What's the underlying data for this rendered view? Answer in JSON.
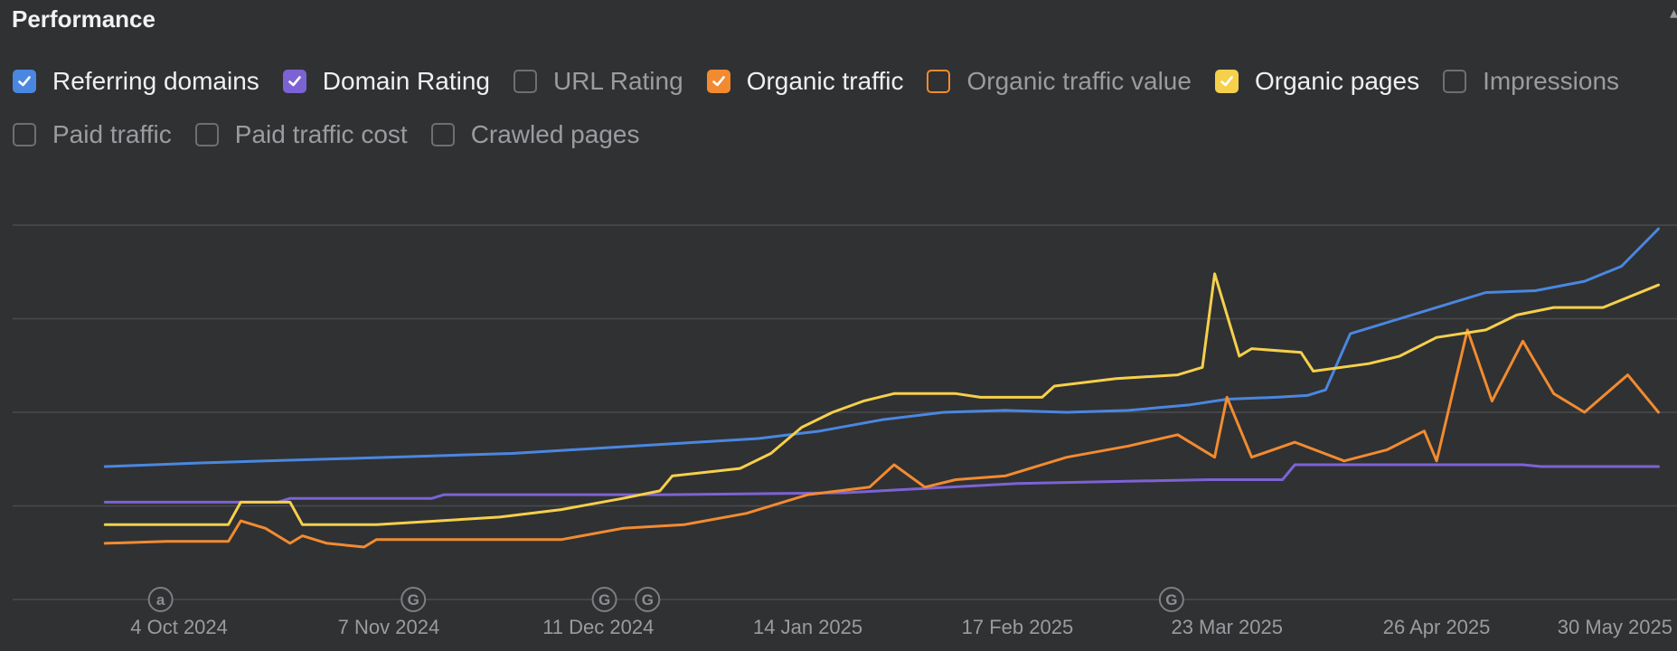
{
  "panel": {
    "title": "Performance"
  },
  "legend": [
    {
      "label": "Referring domains",
      "checked": true,
      "color": "#4a87e0"
    },
    {
      "label": "Domain Rating",
      "checked": true,
      "color": "#7c63d4"
    },
    {
      "label": "URL Rating",
      "checked": false,
      "color": "#6e6f73"
    },
    {
      "label": "Organic traffic",
      "checked": true,
      "color": "#f28b30"
    },
    {
      "label": "Organic traffic value",
      "checked": false,
      "color": "#f28b30"
    },
    {
      "label": "Organic pages",
      "checked": true,
      "color": "#f5d04b"
    },
    {
      "label": "Impressions",
      "checked": false,
      "color": "#6e6f73"
    },
    {
      "label": "Paid traffic",
      "checked": false,
      "color": "#6e6f73"
    },
    {
      "label": "Paid traffic cost",
      "checked": false,
      "color": "#6e6f73"
    },
    {
      "label": "Crawled pages",
      "checked": false,
      "color": "#6e6f73"
    }
  ],
  "chart_data": {
    "type": "line",
    "x_range": [
      "2024-09-07",
      "2025-06-04"
    ],
    "x_ticks": [
      {
        "date": "2024-10-04",
        "label": "4 Oct 2024"
      },
      {
        "date": "2024-11-07",
        "label": "7 Nov 2024"
      },
      {
        "date": "2024-12-11",
        "label": "11 Dec 2024"
      },
      {
        "date": "2025-01-14",
        "label": "14 Jan 2025"
      },
      {
        "date": "2025-02-17",
        "label": "17 Feb 2025"
      },
      {
        "date": "2025-03-23",
        "label": "23 Mar 2025"
      },
      {
        "date": "2025-04-26",
        "label": "26 Apr 2025"
      },
      {
        "date": "2025-05-30",
        "label": "30 May 2025"
      }
    ],
    "ylim": [
      0,
      100
    ],
    "gridlines": [
      0,
      25,
      50,
      75,
      100
    ],
    "grid": true,
    "annotations": [
      {
        "date": "2024-10-01",
        "symbol": "a"
      },
      {
        "date": "2024-11-11",
        "symbol": "G"
      },
      {
        "date": "2024-12-12",
        "symbol": "G"
      },
      {
        "date": "2024-12-19",
        "symbol": "G"
      },
      {
        "date": "2025-03-14",
        "symbol": "G"
      }
    ],
    "series": [
      {
        "name": "Referring domains",
        "color": "#4a87e0",
        "x": [
          "2024-09-22",
          "2024-09-30",
          "2024-10-08",
          "2024-10-18",
          "2024-10-28",
          "2024-11-07",
          "2024-11-17",
          "2024-11-27",
          "2024-12-07",
          "2024-12-17",
          "2024-12-27",
          "2025-01-06",
          "2025-01-16",
          "2025-01-26",
          "2025-02-05",
          "2025-02-15",
          "2025-02-25",
          "2025-03-07",
          "2025-03-17",
          "2025-03-23",
          "2025-03-31",
          "2025-04-05",
          "2025-04-08",
          "2025-04-12",
          "2025-04-20",
          "2025-04-26",
          "2025-05-04",
          "2025-05-12",
          "2025-05-20",
          "2025-05-26",
          "2025-06-01"
        ],
        "y": [
          35.5,
          36,
          36.5,
          37,
          37.5,
          38,
          38.5,
          39,
          40,
          41,
          42,
          43,
          45,
          48,
          50,
          50.5,
          50,
          50.5,
          52,
          53.5,
          54,
          54.5,
          56,
          71,
          75,
          78,
          82,
          82.5,
          85,
          89,
          99
        ]
      },
      {
        "name": "Domain Rating",
        "color": "#7c63d4",
        "x": [
          "2024-09-22",
          "2024-10-20",
          "2024-10-22",
          "2024-11-14",
          "2024-11-16",
          "2024-12-22",
          "2025-01-20",
          "2025-02-17",
          "2025-03-20",
          "2025-04-01",
          "2025-04-03",
          "2025-05-10",
          "2025-05-13",
          "2025-06-01"
        ],
        "y": [
          26,
          26,
          27,
          27,
          28,
          28,
          28.5,
          31,
          32,
          32,
          36,
          36,
          35.5,
          35.5
        ]
      },
      {
        "name": "Organic traffic",
        "color": "#f28b30",
        "x": [
          "2024-09-22",
          "2024-10-02",
          "2024-10-12",
          "2024-10-14",
          "2024-10-18",
          "2024-10-22",
          "2024-10-24",
          "2024-10-28",
          "2024-11-03",
          "2024-11-05",
          "2024-11-20",
          "2024-12-05",
          "2024-12-15",
          "2024-12-25",
          "2025-01-04",
          "2025-01-14",
          "2025-01-24",
          "2025-01-28",
          "2025-02-02",
          "2025-02-07",
          "2025-02-15",
          "2025-02-25",
          "2025-03-07",
          "2025-03-15",
          "2025-03-21",
          "2025-03-23",
          "2025-03-27",
          "2025-04-03",
          "2025-04-11",
          "2025-04-18",
          "2025-04-24",
          "2025-04-26",
          "2025-05-01",
          "2025-05-05",
          "2025-05-10",
          "2025-05-15",
          "2025-05-20",
          "2025-05-27",
          "2025-06-01"
        ],
        "y": [
          15,
          15.5,
          15.5,
          21,
          19,
          15,
          17,
          15,
          14,
          16,
          16,
          16,
          19,
          20,
          23,
          28,
          30,
          36,
          30,
          32,
          33,
          38,
          41,
          44,
          38,
          54,
          38,
          42,
          37,
          40,
          45,
          37,
          72,
          53,
          69,
          55,
          50,
          60,
          50
        ]
      },
      {
        "name": "Organic pages",
        "color": "#f5d04b",
        "x": [
          "2024-09-22",
          "2024-10-12",
          "2024-10-14",
          "2024-10-22",
          "2024-10-24",
          "2024-11-05",
          "2024-11-15",
          "2024-11-25",
          "2024-12-05",
          "2024-12-15",
          "2024-12-21",
          "2024-12-23",
          "2025-01-03",
          "2025-01-08",
          "2025-01-13",
          "2025-01-18",
          "2025-01-23",
          "2025-01-28",
          "2025-02-07",
          "2025-02-11",
          "2025-02-21",
          "2025-02-23",
          "2025-03-05",
          "2025-03-15",
          "2025-03-19",
          "2025-03-21",
          "2025-03-25",
          "2025-03-27",
          "2025-04-04",
          "2025-04-06",
          "2025-04-15",
          "2025-04-20",
          "2025-04-26",
          "2025-05-04",
          "2025-05-09",
          "2025-05-15",
          "2025-05-23",
          "2025-06-01"
        ],
        "y": [
          20,
          20,
          26,
          26,
          20,
          20,
          21,
          22,
          24,
          27,
          29,
          33,
          35,
          39,
          46,
          50,
          53,
          55,
          55,
          54,
          54,
          57,
          59,
          60,
          62,
          87,
          65,
          67,
          66,
          61,
          63,
          65,
          70,
          72,
          76,
          78,
          78,
          84
        ]
      }
    ]
  }
}
